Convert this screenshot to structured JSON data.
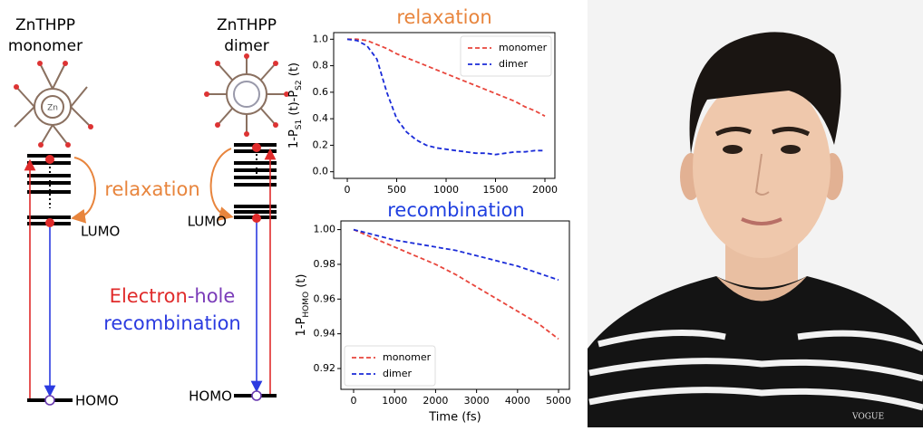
{
  "diagram": {
    "monomer": {
      "name": "ZnTHPP",
      "label": "monomer",
      "atom": "Zn",
      "lumo": "LUMO",
      "homo": "HOMO"
    },
    "dimer": {
      "name": "ZnTHPP",
      "label": "dimer",
      "lumo": "LUMO",
      "homo": "HOMO"
    },
    "relaxation": "relaxation",
    "recombination": {
      "electron": "Electron",
      "hole": "-hole",
      "line2": "recombination"
    }
  },
  "photo": {
    "shirt_text": "VOGUE"
  },
  "chart_data": [
    {
      "type": "line",
      "title": "relaxation",
      "title_color": "#e8853d",
      "ylabel": [
        "1-P",
        "S1",
        " (t)-P",
        "S2",
        " (t)"
      ],
      "x": [
        0,
        100,
        200,
        300,
        400,
        500,
        600,
        700,
        800,
        900,
        1000,
        1100,
        1200,
        1300,
        1400,
        1500,
        1600,
        1700,
        1800,
        1900,
        2000
      ],
      "series": [
        {
          "name": "monomer",
          "color": "#e8463c",
          "values": [
            1.0,
            1.0,
            0.99,
            0.96,
            0.93,
            0.89,
            0.86,
            0.83,
            0.8,
            0.77,
            0.74,
            0.71,
            0.68,
            0.65,
            0.62,
            0.59,
            0.56,
            0.53,
            0.49,
            0.46,
            0.42
          ]
        },
        {
          "name": "dimer",
          "color": "#1a2bd8",
          "values": [
            1.0,
            0.99,
            0.95,
            0.85,
            0.6,
            0.4,
            0.3,
            0.24,
            0.2,
            0.18,
            0.17,
            0.16,
            0.15,
            0.14,
            0.14,
            0.13,
            0.14,
            0.15,
            0.15,
            0.16,
            0.16
          ]
        }
      ],
      "xlim": [
        -138,
        2101
      ],
      "xticks": [
        0,
        500,
        1000,
        1500,
        2000
      ],
      "ylim": [
        -0.05,
        1.05
      ],
      "yticks": [
        {
          "value": 0,
          "label": "0.0"
        },
        0.2,
        0.4,
        0.6,
        0.8,
        {
          "value": 1,
          "label": "1.0"
        }
      ],
      "legend": "upper-right"
    },
    {
      "type": "line",
      "title": "recombination",
      "title_color": "#1f3fe0",
      "ylabel": [
        "1-P",
        "HOMO",
        " (t)"
      ],
      "xlabel": "Time (fs)",
      "x": [
        0,
        500,
        1000,
        1500,
        2000,
        2500,
        3000,
        3500,
        4000,
        4500,
        5000
      ],
      "series": [
        {
          "name": "monomer",
          "color": "#e8463c",
          "values": [
            1.0,
            0.995,
            0.99,
            0.985,
            0.98,
            0.974,
            0.967,
            0.96,
            0.953,
            0.946,
            0.937
          ]
        },
        {
          "name": "dimer",
          "color": "#1a2bd8",
          "values": [
            1.0,
            0.997,
            0.994,
            0.992,
            0.99,
            0.988,
            0.985,
            0.982,
            0.979,
            0.975,
            0.971
          ]
        }
      ],
      "xlim": [
        -310,
        5265
      ],
      "xticks": [
        0,
        1000,
        2000,
        3000,
        4000,
        5000
      ],
      "ylim": [
        0.908,
        1.005
      ],
      "yticks": [
        0.92,
        0.94,
        0.96,
        0.98,
        {
          "value": 1,
          "label": "1.00"
        }
      ],
      "legend": "lower-left"
    }
  ]
}
